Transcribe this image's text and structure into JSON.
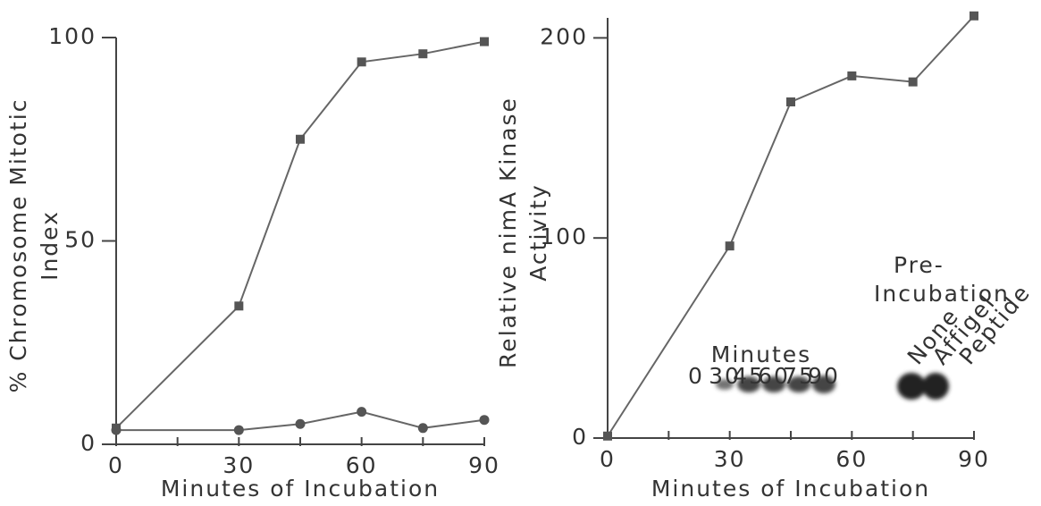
{
  "chart_data": [
    {
      "type": "line",
      "ylabel": [
        "% Chromosome Mitotic",
        "Index"
      ],
      "xlabel": "Minutes of Incubation",
      "x": [
        0,
        30,
        45,
        60,
        75,
        90
      ],
      "xlim": [
        0,
        90
      ],
      "xticks": [
        0,
        30,
        60,
        90
      ],
      "xminor_ticks": [
        15,
        45,
        75
      ],
      "ylim": [
        0,
        100
      ],
      "yticks": [
        0,
        50,
        100
      ],
      "series": [
        {
          "marker": "square",
          "color": "#555555",
          "values": [
            4,
            34,
            75,
            94,
            96,
            99
          ]
        },
        {
          "marker": "circle",
          "color": "#555555",
          "values": [
            3.5,
            3.5,
            5,
            8,
            4,
            6
          ]
        }
      ]
    },
    {
      "type": "line",
      "ylabel": [
        "Relative nimA Kinase",
        "Activity"
      ],
      "xlabel": "Minutes of Incubation",
      "x": [
        0,
        30,
        45,
        60,
        75,
        90
      ],
      "xlim": [
        0,
        90
      ],
      "xticks": [
        0,
        30,
        60,
        90
      ],
      "xminor_ticks": [
        15,
        45,
        75
      ],
      "ylim": [
        0,
        210
      ],
      "yticks": [
        0,
        100,
        200
      ],
      "series": [
        {
          "marker": "square",
          "color": "#555555",
          "values": [
            1,
            96,
            168,
            181,
            178,
            211
          ]
        }
      ],
      "inset": {
        "title": "Minutes",
        "lanes": [
          "0",
          "30",
          "45",
          "60",
          "75",
          "90"
        ],
        "preincubation_title": [
          "Pre-",
          "Incubation"
        ],
        "preincubation_lanes": [
          "None",
          "Affigel",
          "Peptide"
        ]
      }
    }
  ]
}
